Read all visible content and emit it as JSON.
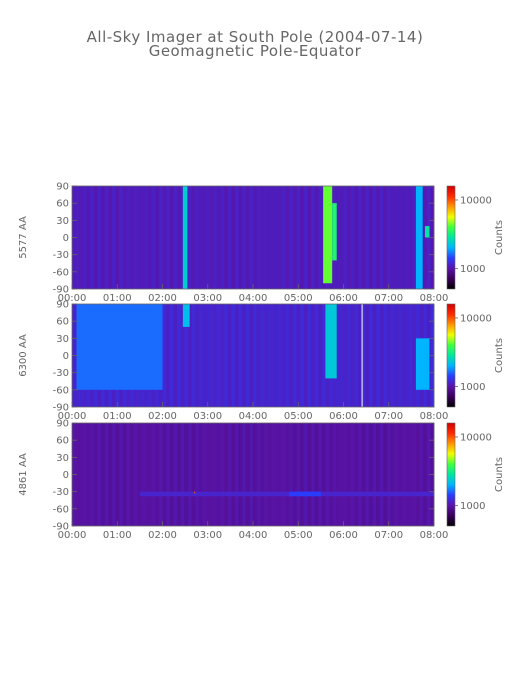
{
  "chart_data": {
    "type": "heatmap",
    "title": "All-Sky Imager at South Pole (2004-07-14)",
    "subtitle": "Geomagnetic Pole-Equator",
    "x_tick_labels": [
      "00:00",
      "01:00",
      "02:00",
      "03:00",
      "04:00",
      "05:00",
      "06:00",
      "07:00",
      "08:00"
    ],
    "y_tick_labels": [
      "90",
      "60",
      "30",
      "0",
      "-30",
      "-60",
      "-90"
    ],
    "x_range_hours": [
      0,
      8
    ],
    "y_range_deg": [
      -90,
      90
    ],
    "colorbar_label": "Counts",
    "colorbar_ticks": [
      "10000",
      "1000"
    ],
    "colorbar_range": [
      500,
      16000
    ],
    "colorbar_scale": "log",
    "colormap": [
      "#000000",
      "#3a005a",
      "#5a14a8",
      "#2a3cff",
      "#00b4ff",
      "#00e6a0",
      "#40ff40",
      "#f0ff00",
      "#ff9600",
      "#ff2a00",
      "#d20000"
    ],
    "panels": [
      {
        "ylabel": "5577 AA",
        "base_level": 0.22,
        "features": [
          {
            "t0": 2.45,
            "t1": 2.55,
            "lat0": -90,
            "lat1": 90,
            "level": 0.45
          },
          {
            "t0": 5.55,
            "t1": 5.75,
            "lat0": -80,
            "lat1": 90,
            "level": 0.62
          },
          {
            "t0": 5.75,
            "t1": 5.85,
            "lat0": -40,
            "lat1": 60,
            "level": 0.55
          },
          {
            "t0": 7.6,
            "t1": 7.75,
            "lat0": -90,
            "lat1": 90,
            "level": 0.4
          },
          {
            "t0": 7.8,
            "t1": 7.9,
            "lat0": 0,
            "lat1": 20,
            "level": 0.5
          }
        ]
      },
      {
        "ylabel": "6300 AA",
        "base_level": 0.24,
        "features": [
          {
            "t0": 0.1,
            "t1": 2.0,
            "lat0": -60,
            "lat1": 90,
            "level": 0.34
          },
          {
            "t0": 2.45,
            "t1": 2.6,
            "lat0": 50,
            "lat1": 90,
            "level": 0.42
          },
          {
            "t0": 5.6,
            "t1": 5.85,
            "lat0": -40,
            "lat1": 90,
            "level": 0.44
          },
          {
            "t0": 6.4,
            "t1": 6.42,
            "lat0": -90,
            "lat1": 90,
            "level": 1.0
          },
          {
            "t0": 7.6,
            "t1": 7.9,
            "lat0": -60,
            "lat1": 30,
            "level": 0.4
          }
        ]
      },
      {
        "ylabel": "4861 AA",
        "base_level": 0.19,
        "features": [
          {
            "t0": 1.5,
            "t1": 8.0,
            "lat0": -38,
            "lat1": -30,
            "level": 0.24
          },
          {
            "t0": 4.8,
            "t1": 5.5,
            "lat0": -38,
            "lat1": -30,
            "level": 0.3
          },
          {
            "t0": 2.7,
            "t1": 2.72,
            "lat0": -33,
            "lat1": -30,
            "level": 0.85
          }
        ]
      }
    ]
  }
}
